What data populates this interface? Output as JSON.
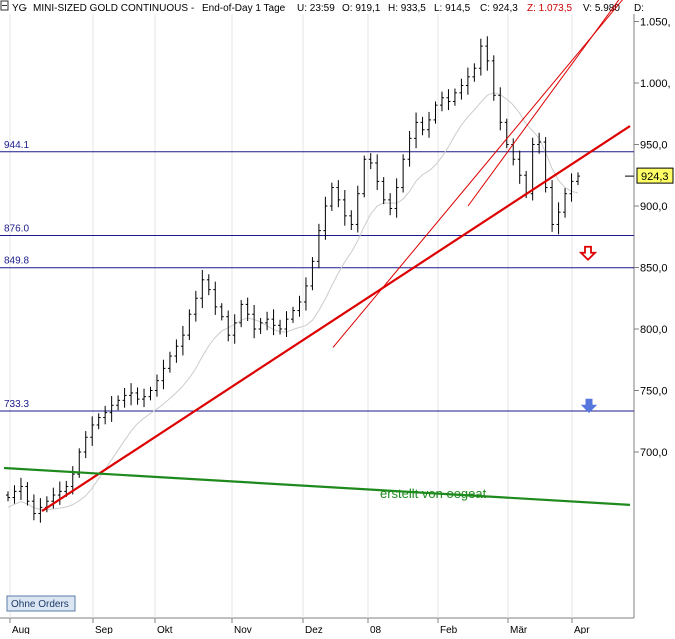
{
  "header": {
    "symbol": "YG",
    "name": "MINI-SIZED GOLD CONTINUOUS",
    "period": "End-of-Day 1 Tage",
    "time": "U: 23:59",
    "open": "O: 919,1",
    "high": "H: 933,5",
    "low": "L: 914,5",
    "close": "C: 924,3",
    "z": "Z: 1.073,5",
    "v": "V: 5.980",
    "d": "D:"
  },
  "chart_data": {
    "type": "line",
    "subtype": "ohlc-bar",
    "title": "YG - MINI-SIZED GOLD CONTINUOUS",
    "ylim": [
      640,
      1060
    ],
    "y_ticks": [
      "1.050,",
      "1.000,",
      "950,0",
      "900,0",
      "850,0",
      "800,0",
      "750,0",
      "700,0"
    ],
    "y_tick_values": [
      1050,
      1000,
      950,
      900,
      850,
      800,
      750,
      700
    ],
    "x_ticks": [
      "Aug",
      "Sep",
      "Okt",
      "Nov",
      "Dez",
      "08",
      "Feb",
      "Mär",
      "Apr"
    ],
    "last_price_label": "924,3",
    "last_price": 924.3,
    "horizontal_levels": [
      {
        "label": "944.1",
        "value": 944.1
      },
      {
        "label": "876.0",
        "value": 876.0
      },
      {
        "label": "849.8",
        "value": 849.8
      },
      {
        "label": "733.3",
        "value": 733.3
      }
    ],
    "closes": [
      663,
      668,
      672,
      660,
      650,
      655,
      660,
      665,
      668,
      672,
      682,
      700,
      712,
      722,
      728,
      732,
      738,
      742,
      746,
      748,
      743,
      745,
      750,
      758,
      768,
      778,
      786,
      795,
      812,
      825,
      840,
      832,
      818,
      810,
      795,
      805,
      820,
      812,
      800,
      805,
      808,
      803,
      800,
      808,
      815,
      822,
      835,
      855,
      880,
      900,
      915,
      905,
      892,
      885,
      910,
      938,
      935,
      920,
      905,
      898,
      915,
      938,
      955,
      968,
      962,
      970,
      982,
      988,
      985,
      992,
      998,
      1005,
      1012,
      1030,
      1018,
      990,
      968,
      950,
      938,
      925,
      910,
      950,
      952,
      915,
      885,
      895,
      910,
      920,
      924.3
    ],
    "trendlines": [
      {
        "color": "#dd0000",
        "from": [
          "Aug",
          652
        ],
        "to": [
          "Apr",
          965
        ]
      },
      {
        "color": "#dd0000",
        "from": [
          "Dez",
          785
        ],
        "to": [
          "Apr",
          1075
        ]
      },
      {
        "color": "#dd0000",
        "from": [
          "Feb",
          900
        ],
        "to": [
          "Apr",
          1080
        ]
      },
      {
        "color": "#1e8a1e",
        "from": [
          "Aug",
          687
        ],
        "to": [
          "Apr",
          657
        ]
      }
    ],
    "arrows": [
      {
        "label": "red-down-arrow",
        "near": 862
      },
      {
        "label": "blue-down-arrow",
        "near": 738
      }
    ],
    "annotation": "erstellt von oegeat",
    "button_label": "Ohne Orders"
  },
  "colors": {
    "bars": "#000000",
    "hline": "#1a1a8c",
    "trend_red": "#dd0000",
    "trend_green": "#1e8a1e",
    "ma": "#cccccc",
    "annotation": "#1e8a1e"
  }
}
